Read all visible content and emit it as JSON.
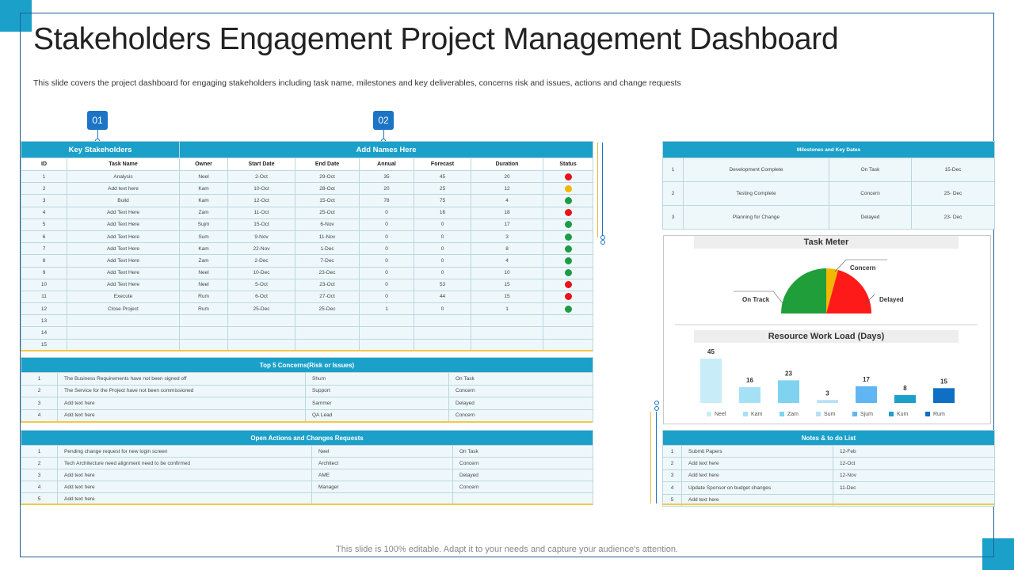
{
  "page": {
    "title": "Stakeholders Engagement Project Management Dashboard",
    "subtitle": "This slide covers the project dashboard for engaging stakeholders including task name, milestones and key deliverables, concerns risk and issues, actions and change requests",
    "footer": "This slide is 100% editable. Adapt it to your needs and capture your audience's attention."
  },
  "badges": [
    "01",
    "02"
  ],
  "stakeholders": {
    "group1": "Key Stakeholders",
    "group2": "Add Names Here",
    "columns": [
      "ID",
      "Task Name",
      "Owner",
      "Start Date",
      "End Date",
      "Annual",
      "Forecast",
      "Duration",
      "Status"
    ],
    "rows": [
      {
        "id": "1",
        "task": "Analysis",
        "owner": "Neel",
        "start": "2-Oct",
        "end": "29-Oct",
        "annual": "35",
        "forecast": "45",
        "duration": "20",
        "status": "red"
      },
      {
        "id": "2",
        "task": "Add text here",
        "owner": "Kam",
        "start": "10-Oct",
        "end": "28-Oct",
        "annual": "20",
        "forecast": "25",
        "duration": "12",
        "status": "amber"
      },
      {
        "id": "3",
        "task": "Build",
        "owner": "Kam",
        "start": "12-Oct",
        "end": "15-Oct",
        "annual": "78",
        "forecast": "75",
        "duration": "4",
        "status": "green"
      },
      {
        "id": "4",
        "task": "Add Text Here",
        "owner": "Zam",
        "start": "11-Oct",
        "end": "25-Oct",
        "annual": "0",
        "forecast": "16",
        "duration": "18",
        "status": "red"
      },
      {
        "id": "5",
        "task": "Add Text Here",
        "owner": "Sujm",
        "start": "15-Oct",
        "end": "6-Nov",
        "annual": "0",
        "forecast": "0",
        "duration": "17",
        "status": "green"
      },
      {
        "id": "6",
        "task": "Add Text Here",
        "owner": "Sum",
        "start": "9-Nov",
        "end": "11-Nov",
        "annual": "0",
        "forecast": "0",
        "duration": "3",
        "status": "green"
      },
      {
        "id": "7",
        "task": "Add Text Here",
        "owner": "Kam",
        "start": "22-Nov",
        "end": "1-Dec",
        "annual": "0",
        "forecast": "0",
        "duration": "8",
        "status": "green"
      },
      {
        "id": "8",
        "task": "Add Text Here",
        "owner": "Zam",
        "start": "2-Dec",
        "end": "7-Dec",
        "annual": "0",
        "forecast": "0",
        "duration": "4",
        "status": "green"
      },
      {
        "id": "9",
        "task": "Add Text Here",
        "owner": "Neel",
        "start": "10-Dec",
        "end": "23-Dec",
        "annual": "0",
        "forecast": "0",
        "duration": "10",
        "status": "green"
      },
      {
        "id": "10",
        "task": "Add Text Here",
        "owner": "Neel",
        "start": "5-Oct",
        "end": "23-Oct",
        "annual": "0",
        "forecast": "53",
        "duration": "15",
        "status": "red"
      },
      {
        "id": "11",
        "task": "Execute",
        "owner": "Rum",
        "start": "6-Oct",
        "end": "27-Oct",
        "annual": "0",
        "forecast": "44",
        "duration": "15",
        "status": "red"
      },
      {
        "id": "12",
        "task": "Close Project",
        "owner": "Rum",
        "start": "25-Dec",
        "end": "25-Dec",
        "annual": "1",
        "forecast": "0",
        "duration": "1",
        "status": "green"
      },
      {
        "id": "13",
        "task": "",
        "owner": "",
        "start": "",
        "end": "",
        "annual": "",
        "forecast": "",
        "duration": "",
        "status": ""
      },
      {
        "id": "14",
        "task": "",
        "owner": "",
        "start": "",
        "end": "",
        "annual": "",
        "forecast": "",
        "duration": "",
        "status": ""
      },
      {
        "id": "15",
        "task": "",
        "owner": "",
        "start": "",
        "end": "",
        "annual": "",
        "forecast": "",
        "duration": "",
        "status": ""
      }
    ]
  },
  "concerns": {
    "title": "Top 5 Concerns(Risk or Issues)",
    "rows": [
      [
        "1",
        "The Business Requirements have not been signed off",
        "Shum",
        "On Task"
      ],
      [
        "2",
        "The Service for the Project have not been commissioned",
        "Support",
        "Concern"
      ],
      [
        "3",
        "Add text here",
        "Sammer",
        "Delayed"
      ],
      [
        "4",
        "Add text here",
        "QA Lead",
        "Concern"
      ]
    ]
  },
  "actions": {
    "title": "Open Actions and Changes Requests",
    "rows": [
      [
        "1",
        "Pending change request for new login screen",
        "Neel",
        "On Task"
      ],
      [
        "2",
        "Tech Architecture need alignment need to be confirmed",
        "Architect",
        "Concern"
      ],
      [
        "3",
        "Add text here",
        "AME",
        "Delayed"
      ],
      [
        "4",
        "Add text here",
        "Manager",
        "Concern"
      ],
      [
        "5",
        "Add text here",
        "",
        ""
      ]
    ]
  },
  "milestones": {
    "title": "Milestones and Key Dates",
    "rows": [
      [
        "1",
        "Development Complete",
        "On Task",
        "15-Dec"
      ],
      [
        "2",
        "Testing Complete",
        "Concern",
        "25- Dec"
      ],
      [
        "3",
        "Planning for Change",
        "Delayed",
        "23- Dec"
      ]
    ]
  },
  "task_meter": {
    "title": "Task Meter",
    "labels": {
      "on_track": "On Track",
      "concern": "Concern",
      "delayed": "Delayed"
    },
    "colors": {
      "on_track": "#1f9e3a",
      "concern": "#f2b705",
      "delayed": "#ff1a1a"
    }
  },
  "chart_data": {
    "type": "bar",
    "title": "Resource Work Load (Days)",
    "categories": [
      "Neel",
      "Kam",
      "Zam",
      "Sum",
      "Sjum",
      "Kum",
      "Rum"
    ],
    "values": [
      45,
      16,
      23,
      3,
      17,
      8,
      15
    ],
    "colors": [
      "#c8edf8",
      "#a5e1f4",
      "#7fd3ef",
      "#b9dff8",
      "#5fb6f2",
      "#1ba0c9",
      "#0f6fc4"
    ],
    "ylim": [
      0,
      45
    ]
  },
  "notes": {
    "title": "Notes & to do List",
    "rows": [
      [
        "1",
        "Submit Papers",
        "12-Feb"
      ],
      [
        "2",
        "Add text here",
        "12-Oct"
      ],
      [
        "3",
        "Add text here",
        "12-Nov"
      ],
      [
        "4",
        "Update Sponsor on budget changes",
        "11-Dec"
      ],
      [
        "5",
        "Add text here",
        ""
      ]
    ]
  },
  "status_colors": {
    "red": "#e8141b",
    "amber": "#f4b400",
    "green": "#1e9c45"
  }
}
